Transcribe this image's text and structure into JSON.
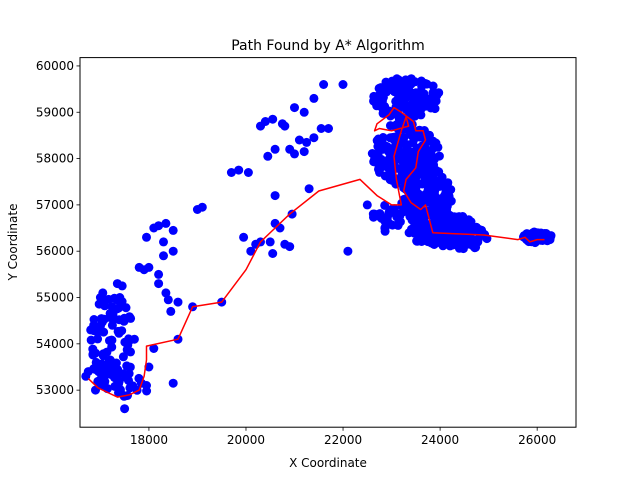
{
  "chart_data": {
    "type": "scatter",
    "title": "Path Found by A* Algorithm",
    "xlabel": "X Coordinate",
    "ylabel": "Y Coordinate",
    "xlim": [
      16580,
      26800
    ],
    "ylim": [
      52200,
      60180
    ],
    "xticks": [
      18000,
      20000,
      22000,
      24000,
      26000
    ],
    "yticks": [
      53000,
      54000,
      55000,
      56000,
      57000,
      58000,
      59000,
      60000
    ],
    "grid": false,
    "colors": {
      "points": "#0000ff",
      "path": "#ff0000"
    },
    "clusters": [
      {
        "cx": 17250,
        "cy": 54000,
        "rx": 450,
        "ry": 1100,
        "n": 90
      },
      {
        "cx": 17600,
        "cy": 53100,
        "rx": 400,
        "ry": 300,
        "n": 20
      },
      {
        "cx": 23300,
        "cy": 59300,
        "rx": 700,
        "ry": 450,
        "n": 120
      },
      {
        "cx": 23300,
        "cy": 58100,
        "rx": 700,
        "ry": 700,
        "n": 180
      },
      {
        "cx": 23700,
        "cy": 57200,
        "rx": 550,
        "ry": 650,
        "n": 160
      },
      {
        "cx": 24000,
        "cy": 56500,
        "rx": 700,
        "ry": 400,
        "n": 170
      },
      {
        "cx": 24500,
        "cy": 56300,
        "rx": 500,
        "ry": 250,
        "n": 70
      },
      {
        "cx": 22900,
        "cy": 56700,
        "rx": 300,
        "ry": 300,
        "n": 30
      },
      {
        "cx": 26000,
        "cy": 56300,
        "rx": 300,
        "ry": 120,
        "n": 60
      }
    ],
    "points": [
      [
        16700,
        53300
      ],
      [
        16750,
        53400
      ],
      [
        16900,
        53000
      ],
      [
        17000,
        55000
      ],
      [
        17050,
        55100
      ],
      [
        17350,
        55300
      ],
      [
        17450,
        55250
      ],
      [
        17400,
        55000
      ],
      [
        17800,
        55650
      ],
      [
        17900,
        55600
      ],
      [
        17950,
        56300
      ],
      [
        18100,
        56500
      ],
      [
        18200,
        56550
      ],
      [
        18350,
        56600
      ],
      [
        18300,
        56200
      ],
      [
        18500,
        56450
      ],
      [
        18500,
        56000
      ],
      [
        18300,
        55900
      ],
      [
        18000,
        55650
      ],
      [
        18200,
        55500
      ],
      [
        18200,
        55300
      ],
      [
        18350,
        55100
      ],
      [
        18400,
        54950
      ],
      [
        18600,
        54900
      ],
      [
        18450,
        54700
      ],
      [
        18900,
        54800
      ],
      [
        19000,
        56900
      ],
      [
        19100,
        56950
      ],
      [
        19500,
        54900
      ],
      [
        19700,
        57700
      ],
      [
        19850,
        57750
      ],
      [
        20050,
        57700
      ],
      [
        19950,
        56300
      ],
      [
        20100,
        56000
      ],
      [
        20200,
        56150
      ],
      [
        20300,
        56200
      ],
      [
        20500,
        56200
      ],
      [
        20550,
        55950
      ],
      [
        20600,
        56600
      ],
      [
        20700,
        56500
      ],
      [
        20800,
        56150
      ],
      [
        20900,
        56100
      ],
      [
        20950,
        56800
      ],
      [
        20600,
        57200
      ],
      [
        20450,
        58050
      ],
      [
        20600,
        58200
      ],
      [
        20800,
        58700
      ],
      [
        20900,
        58200
      ],
      [
        21000,
        58100
      ],
      [
        21100,
        58400
      ],
      [
        21250,
        58350
      ],
      [
        21200,
        58150
      ],
      [
        21400,
        58450
      ],
      [
        21550,
        58650
      ],
      [
        21700,
        58650
      ],
      [
        21300,
        57350
      ],
      [
        21000,
        59100
      ],
      [
        21200,
        59000
      ],
      [
        21400,
        59300
      ],
      [
        20300,
        58700
      ],
      [
        20400,
        58800
      ],
      [
        20550,
        58850
      ],
      [
        20750,
        58750
      ],
      [
        21600,
        59600
      ],
      [
        22000,
        59600
      ],
      [
        22100,
        56000
      ],
      [
        22500,
        57000
      ],
      [
        22650,
        56800
      ],
      [
        17950,
        53100
      ],
      [
        18500,
        53150
      ],
      [
        17500,
        52600
      ],
      [
        18000,
        53500
      ],
      [
        18100,
        53900
      ],
      [
        18600,
        54100
      ],
      [
        17700,
        54100
      ],
      [
        16900,
        53800
      ],
      [
        16800,
        54300
      ]
    ],
    "path": [
      [
        16750,
        53250
      ],
      [
        16950,
        53050
      ],
      [
        17150,
        52950
      ],
      [
        17350,
        52850
      ],
      [
        17600,
        52900
      ],
      [
        17800,
        53000
      ],
      [
        17900,
        53300
      ],
      [
        17950,
        53650
      ],
      [
        17950,
        53950
      ],
      [
        18600,
        54100
      ],
      [
        18900,
        54800
      ],
      [
        19500,
        54900
      ],
      [
        20000,
        55600
      ],
      [
        20300,
        56200
      ],
      [
        20600,
        56500
      ],
      [
        20900,
        56800
      ],
      [
        21500,
        57300
      ],
      [
        22350,
        57550
      ],
      [
        22700,
        57200
      ],
      [
        23000,
        57000
      ],
      [
        23200,
        57000
      ],
      [
        23100,
        57550
      ],
      [
        23050,
        58050
      ],
      [
        23200,
        58600
      ],
      [
        23300,
        58900
      ],
      [
        23350,
        58700
      ],
      [
        23000,
        58600
      ],
      [
        22750,
        58650
      ],
      [
        22650,
        58600
      ],
      [
        22700,
        58750
      ],
      [
        22950,
        58950
      ],
      [
        23050,
        59100
      ],
      [
        23200,
        59000
      ],
      [
        23450,
        58800
      ],
      [
        23500,
        58600
      ],
      [
        23650,
        58600
      ],
      [
        23700,
        58400
      ],
      [
        23550,
        58150
      ],
      [
        23500,
        57800
      ],
      [
        23300,
        57550
      ],
      [
        23250,
        57300
      ],
      [
        23400,
        57050
      ],
      [
        23600,
        56900
      ],
      [
        23700,
        57000
      ],
      [
        23850,
        56400
      ],
      [
        24900,
        56350
      ],
      [
        25600,
        56250
      ],
      [
        25750,
        56300
      ],
      [
        25850,
        56200
      ],
      [
        26000,
        56250
      ],
      [
        26150,
        56250
      ]
    ]
  }
}
